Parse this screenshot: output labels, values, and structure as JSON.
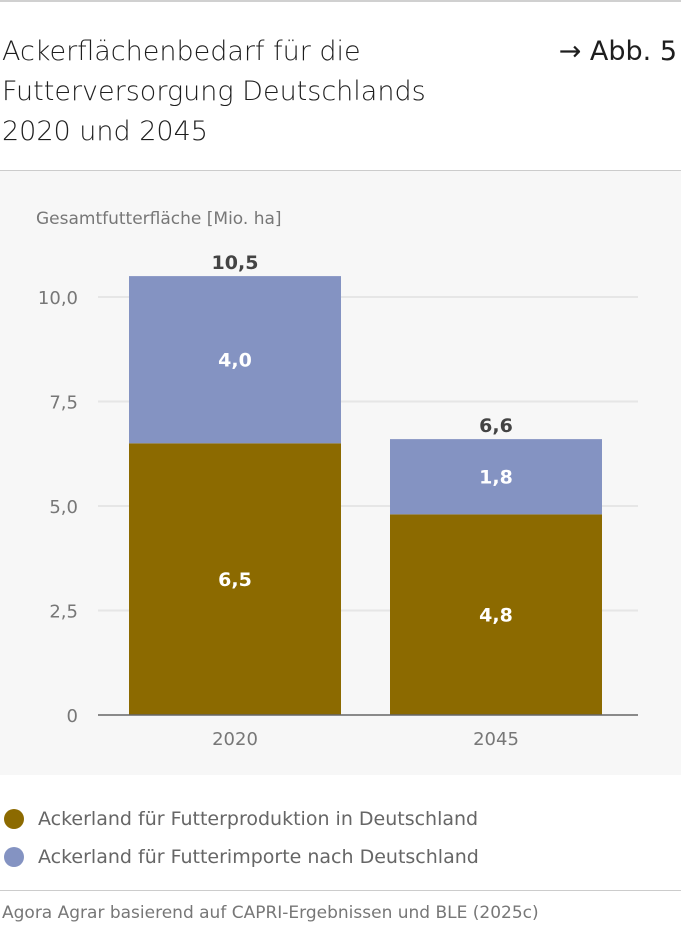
{
  "header": {
    "title": "Ackerflächenbedarf für die Futterversorgung Deutschlands 2020 und 2045",
    "figure_ref": "→ Abb. 5"
  },
  "chart_data": {
    "type": "bar",
    "stacked": true,
    "ylabel": "Gesamtfutterfläche [Mio. ha]",
    "ylim": [
      0,
      10.5
    ],
    "yticks": [
      0,
      2.5,
      5.0,
      7.5,
      10.0
    ],
    "ytick_labels": [
      "0",
      "2,5",
      "5,0",
      "7,5",
      "10,0"
    ],
    "grid": true,
    "categories": [
      "2020",
      "2045"
    ],
    "series": [
      {
        "name": "Ackerland für Futterproduktion in Deutschland",
        "color": "#8c6a00",
        "values": [
          6.5,
          4.8
        ],
        "labels": [
          "6,5",
          "4,8"
        ]
      },
      {
        "name": "Ackerland für Futterimporte nach Deutschland",
        "color": "#8493c2",
        "values": [
          4.0,
          1.8
        ],
        "labels": [
          "4,0",
          "1,8"
        ]
      }
    ],
    "totals": [
      10.5,
      6.6
    ],
    "total_labels": [
      "10,5",
      "6,6"
    ],
    "legend_position": "bottom"
  },
  "source": "Agora Agrar basierend auf CAPRI-Ergebnissen und BLE (2025c)"
}
